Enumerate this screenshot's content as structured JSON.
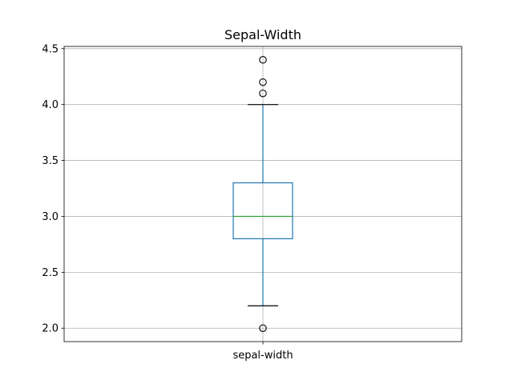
{
  "chart_data": {
    "type": "box",
    "title": "Sepal-Width",
    "xlabel": "",
    "ylabel": "",
    "categories": [
      "sepal-width"
    ],
    "ylim": [
      1.88,
      4.52
    ],
    "yticks": [
      2.0,
      2.5,
      3.0,
      3.5,
      4.0,
      4.5
    ],
    "ytick_labels": [
      "2.0",
      "2.5",
      "3.0",
      "3.5",
      "4.0",
      "4.5"
    ],
    "grid": true,
    "boxes": [
      {
        "name": "sepal-width",
        "whisker_low": 2.2,
        "q1": 2.8,
        "median": 3.0,
        "q3": 3.3,
        "whisker_high": 4.0,
        "outliers": [
          2.0,
          4.1,
          4.2,
          4.4
        ]
      }
    ],
    "colors": {
      "box": "#1f77b4",
      "whisker": "#1f77b4",
      "cap": "#000000",
      "median": "#2ca02c",
      "grid": "#b0b0b0",
      "outlier_edge": "#000000"
    }
  }
}
